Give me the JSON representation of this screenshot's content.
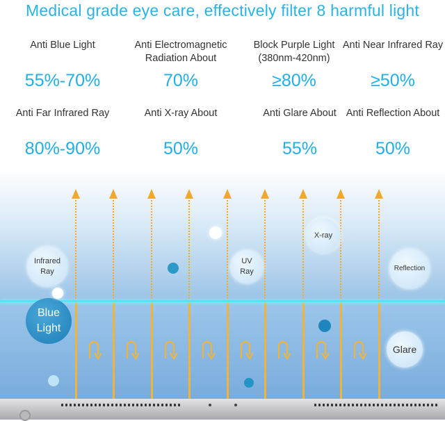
{
  "headline": "Medical grade eye care, effectively filter 8 harmful light",
  "stats": [
    {
      "label": "Anti Blue Light",
      "value": "55%-70%"
    },
    {
      "label": "Anti Electromagnetic Radiation About",
      "value": "70%"
    },
    {
      "label": "Block Purple Light (380nm-420nm)",
      "value": "≥80%"
    },
    {
      "label": "Anti Near Infrared Ray",
      "value": "≥50%"
    },
    {
      "label": "Anti Far Infrared Ray",
      "value": "80%-90%"
    },
    {
      "label": "Anti X-ray About",
      "value": "50%"
    },
    {
      "label": "Anti Glare About",
      "value": "55%"
    },
    {
      "label": "Anti Reflection About",
      "value": "50%"
    }
  ],
  "bubbles": {
    "infrared": "Infrared Ray",
    "uv": "UV Ray",
    "xray": "X-ray",
    "reflection": "Reflection",
    "blue_light": "Blue Light",
    "glare": "Glare"
  },
  "colors": {
    "accent": "#22aee6",
    "arrow": "#f0a92e",
    "glass_line": "#5ee0f4",
    "blue_bubble": "#1d7db8"
  }
}
